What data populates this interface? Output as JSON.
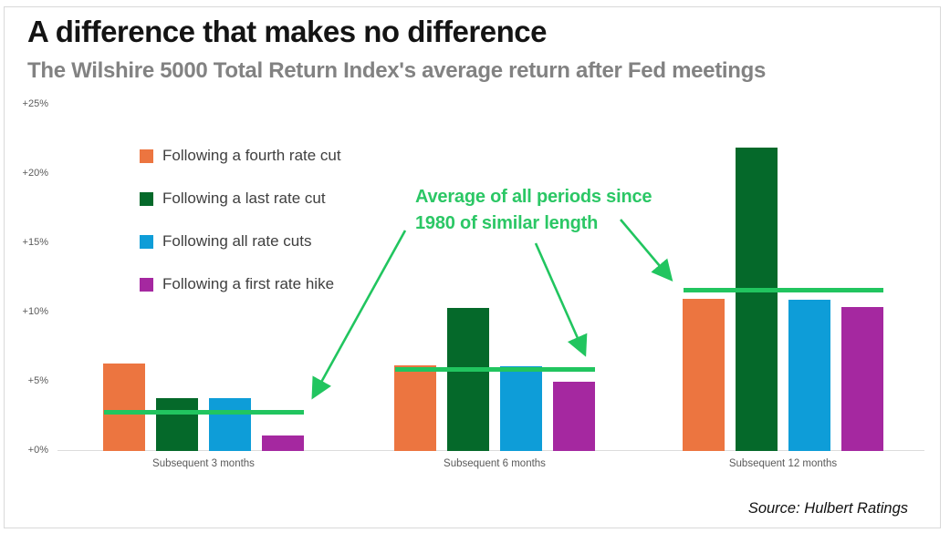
{
  "source": "Source: Hulbert Ratings",
  "chart_data": {
    "type": "bar",
    "title": "A difference that makes no difference",
    "subtitle": "The Wilshire 5000 Total Return Index's average return after Fed meetings",
    "categories": [
      "Subsequent 3 months",
      "Subsequent 6 months",
      "Subsequent 12 months"
    ],
    "series": [
      {
        "name": "Following a fourth rate cut",
        "color": "#EC7540",
        "values": [
          6.3,
          6.2,
          11.0
        ]
      },
      {
        "name": "Following a last rate cut",
        "color": "#05692A",
        "values": [
          3.8,
          10.3,
          21.9
        ]
      },
      {
        "name": "Following all rate cuts",
        "color": "#0E9DD8",
        "values": [
          3.8,
          6.1,
          10.9
        ]
      },
      {
        "name": "Following a first rate hike",
        "color": "#A528A0",
        "values": [
          1.1,
          5.0,
          10.4
        ]
      }
    ],
    "average_lines": {
      "label": "Average of all periods since 1980 of similar length",
      "color": "#21C55F",
      "values": [
        2.8,
        5.9,
        11.6
      ]
    },
    "annotation": {
      "line1": "Average of all periods since",
      "line2": "1980 of similar length"
    },
    "yticks": {
      "labels": [
        "+0%",
        "+5%",
        "+10%",
        "+15%",
        "+20%",
        "+25%"
      ],
      "values": [
        0,
        5,
        10,
        15,
        20,
        25
      ]
    },
    "ylim": [
      0,
      25
    ],
    "grid": "zero-baseline-only",
    "legend_position": "top-left"
  }
}
